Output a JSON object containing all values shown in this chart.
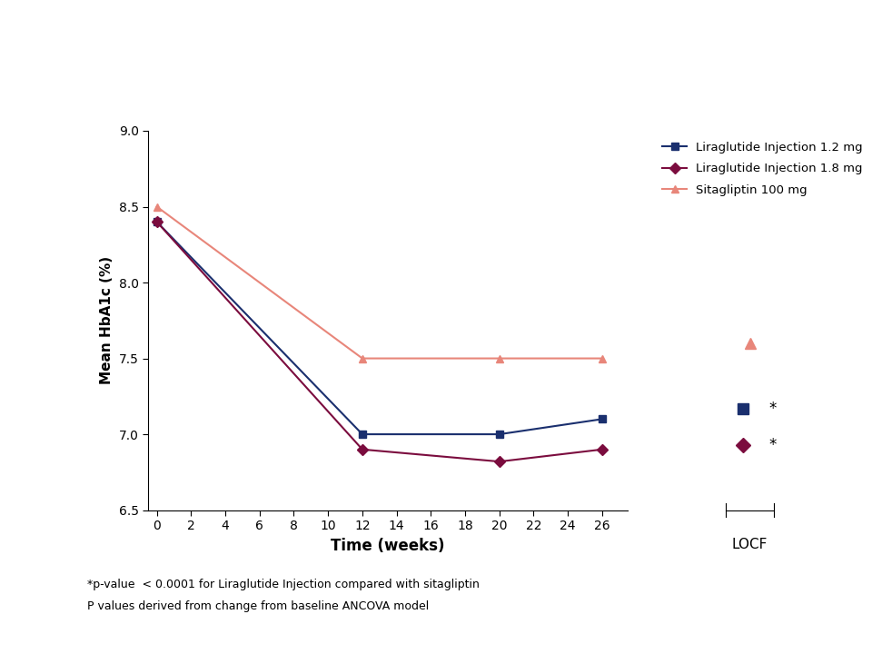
{
  "series": [
    {
      "label": "Liraglutide Injection 1.2 mg",
      "color": "#1a2f6e",
      "marker": "s",
      "x": [
        0,
        12,
        20,
        26
      ],
      "y": [
        8.4,
        7.0,
        7.0,
        7.1
      ],
      "locf_y": 7.17
    },
    {
      "label": "Liraglutide Injection 1.8 mg",
      "color": "#7b0c3e",
      "marker": "D",
      "x": [
        0,
        12,
        20,
        26
      ],
      "y": [
        8.4,
        6.9,
        6.82,
        6.9
      ],
      "locf_y": 6.93
    },
    {
      "label": "Sitagliptin 100 mg",
      "color": "#e8867a",
      "marker": "^",
      "x": [
        0,
        12,
        20,
        26
      ],
      "y": [
        8.5,
        7.5,
        7.5,
        7.5
      ],
      "locf_y": 7.6
    }
  ],
  "xlabel": "Time (weeks)",
  "ylabel": "Mean HbA1c (%)",
  "ylim": [
    6.5,
    9.0
  ],
  "yticks": [
    6.5,
    7.0,
    7.5,
    8.0,
    8.5,
    9.0
  ],
  "xticks": [
    0,
    2,
    4,
    6,
    8,
    10,
    12,
    14,
    16,
    18,
    20,
    22,
    24,
    26
  ],
  "xlim": [
    -0.5,
    27.5
  ],
  "locf_label": "LOCF",
  "footnote_line1": "*p-value  < 0.0001 for Liraglutide Injection compared with sitagliptin",
  "footnote_line2": "P values derived from change from baseline ANCOVA model",
  "background_color": "#ffffff"
}
